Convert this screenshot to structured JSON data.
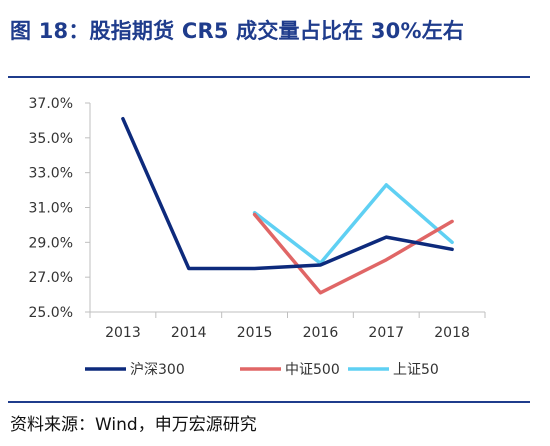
{
  "header": {
    "title": "图 18：股指期货 CR5 成交量占比在 30%左右"
  },
  "footer": {
    "source": "资料来源：Wind，申万宏源研究"
  },
  "colors": {
    "accent": "#1f3c8c"
  },
  "chart_data": {
    "type": "line",
    "title": "",
    "xlabel": "",
    "ylabel": "",
    "categories": [
      "2013",
      "2014",
      "2015",
      "2016",
      "2017",
      "2018"
    ],
    "yticks": [
      "25.0%",
      "27.0%",
      "29.0%",
      "31.0%",
      "33.0%",
      "35.0%",
      "37.0%"
    ],
    "ylim": [
      25.0,
      37.0
    ],
    "grid": false,
    "legend_position": "bottom",
    "series": [
      {
        "name": "沪深300",
        "color": "#0d2a7c",
        "values": [
          36.1,
          27.5,
          27.5,
          27.7,
          29.3,
          28.6
        ]
      },
      {
        "name": "中证500",
        "color": "#e06666",
        "values": [
          null,
          null,
          30.6,
          26.1,
          28.0,
          30.2
        ]
      },
      {
        "name": "上证50",
        "color": "#5fd0f3",
        "values": [
          null,
          null,
          30.7,
          27.8,
          32.3,
          29.0
        ]
      }
    ]
  }
}
